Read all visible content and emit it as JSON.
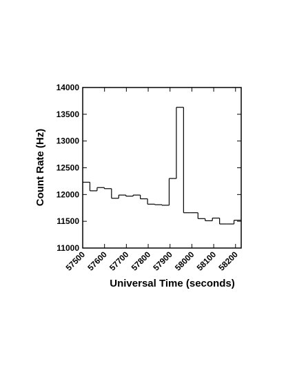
{
  "chart_data": {
    "type": "histogram",
    "xlabel": "Universal Time (seconds)",
    "ylabel": "Count Rate (Hz)",
    "bins": [
      57500,
      57533,
      57566,
      57599,
      57632,
      57665,
      57698,
      57731,
      57764,
      57797,
      57830,
      57863,
      57896,
      57929,
      57962,
      57995,
      58028,
      58061,
      58094,
      58127,
      58160,
      58193,
      58226
    ],
    "values": [
      12230,
      12070,
      12130,
      12110,
      11930,
      11990,
      11970,
      11990,
      11920,
      11820,
      11810,
      11800,
      12300,
      13630,
      11660,
      11660,
      11550,
      11510,
      11560,
      11450,
      11450,
      11520
    ],
    "color": "#000000",
    "xlim": [
      57500,
      58226
    ],
    "ylim": [
      11000,
      14000
    ],
    "xticks": [
      57500,
      57600,
      57700,
      57800,
      57900,
      58000,
      58100,
      58200
    ],
    "yticks": [
      11000,
      11500,
      12000,
      12500,
      13000,
      13500,
      14000
    ]
  }
}
